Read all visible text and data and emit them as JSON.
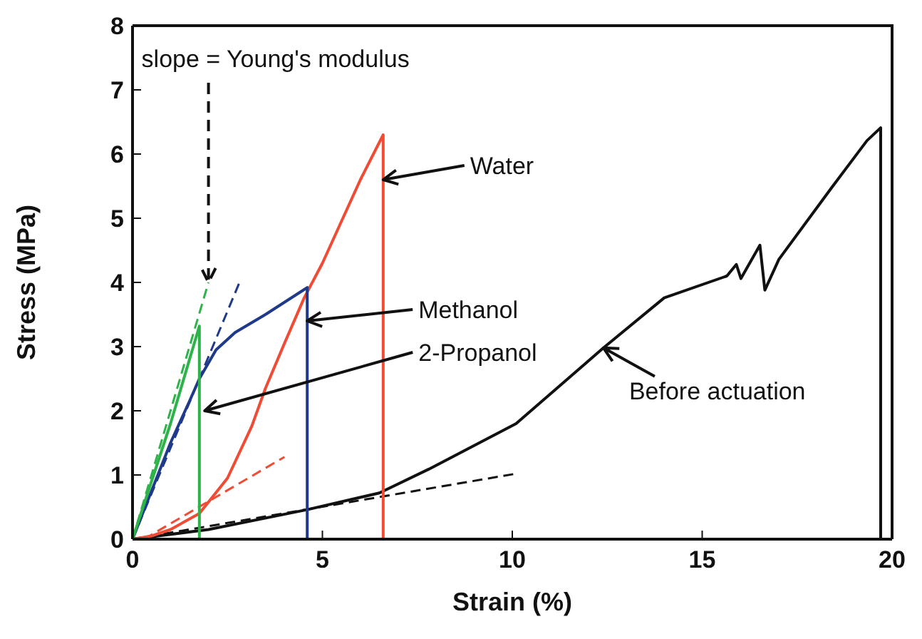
{
  "chart_data": {
    "type": "line",
    "xlabel": "Strain (%)",
    "ylabel": "Stress (MPa)",
    "xlim": [
      0,
      20
    ],
    "ylim": [
      0,
      8
    ],
    "xticks": [
      0,
      5,
      10,
      15,
      20
    ],
    "yticks": [
      0,
      1,
      2,
      3,
      4,
      5,
      6,
      7,
      8
    ],
    "series": [
      {
        "color": "#111111",
        "x": [
          0,
          2,
          4.6,
          6.5,
          7.8,
          10.1,
          12.4,
          14,
          15.65,
          15.9,
          16.02,
          16.52,
          16.65,
          17.02,
          18.4,
          19.34,
          19.7,
          19.7
        ],
        "values": [
          0,
          0.15,
          0.46,
          0.72,
          1.09,
          1.8,
          2.98,
          3.76,
          4.1,
          4.28,
          4.06,
          4.58,
          3.88,
          4.36,
          5.47,
          6.21,
          6.41,
          0
        ]
      },
      {
        "color": "#111111",
        "line_style": "dashed",
        "x": [
          0,
          10.1
        ],
        "values": [
          0,
          1.02
        ]
      },
      {
        "color": "#ef4b35",
        "x": [
          0,
          0.5,
          1,
          1.76,
          2.5,
          3.14,
          3.5,
          4,
          4.52,
          5,
          5.5,
          6,
          6.6,
          6.6
        ],
        "values": [
          0,
          0.05,
          0.15,
          0.4,
          0.95,
          1.76,
          2.35,
          3.05,
          3.76,
          4.3,
          4.95,
          5.6,
          6.3,
          0
        ]
      },
      {
        "color": "#ef4b35",
        "line_style": "dashed",
        "x": [
          0.3,
          4
        ],
        "values": [
          0,
          1.28
        ]
      },
      {
        "color": "#1f3a8a",
        "x": [
          0,
          0.5,
          1,
          1.5,
          1.76,
          2.2,
          2.7,
          3.5,
          4.6,
          4.6
        ],
        "values": [
          0,
          0.75,
          1.5,
          2.15,
          2.5,
          2.95,
          3.22,
          3.5,
          3.92,
          0
        ]
      },
      {
        "color": "#1f3a8a",
        "line_style": "dashed",
        "x": [
          0,
          2.83
        ],
        "values": [
          0,
          4.02
        ]
      },
      {
        "color": "#2db34a",
        "x": [
          0,
          0.5,
          1,
          1.5,
          1.76,
          1.76
        ],
        "values": [
          0,
          0.9,
          1.8,
          2.8,
          3.32,
          0
        ]
      },
      {
        "color": "#2db34a",
        "line_style": "dashed",
        "x": [
          0,
          2
        ],
        "values": [
          0,
          4.0
        ]
      }
    ],
    "annotations": [
      {
        "text": "slope = Young's modulus",
        "x": 2.0,
        "y": 4.0
      },
      {
        "text": "Water",
        "x": 6.6,
        "y": 5.6
      },
      {
        "text": "Methanol",
        "x": 4.6,
        "y": 3.4
      },
      {
        "text": "2-Propanol",
        "x": 1.9,
        "y": 2.0
      },
      {
        "text": "Before actuation",
        "x": 12.4,
        "y": 2.98
      }
    ]
  }
}
